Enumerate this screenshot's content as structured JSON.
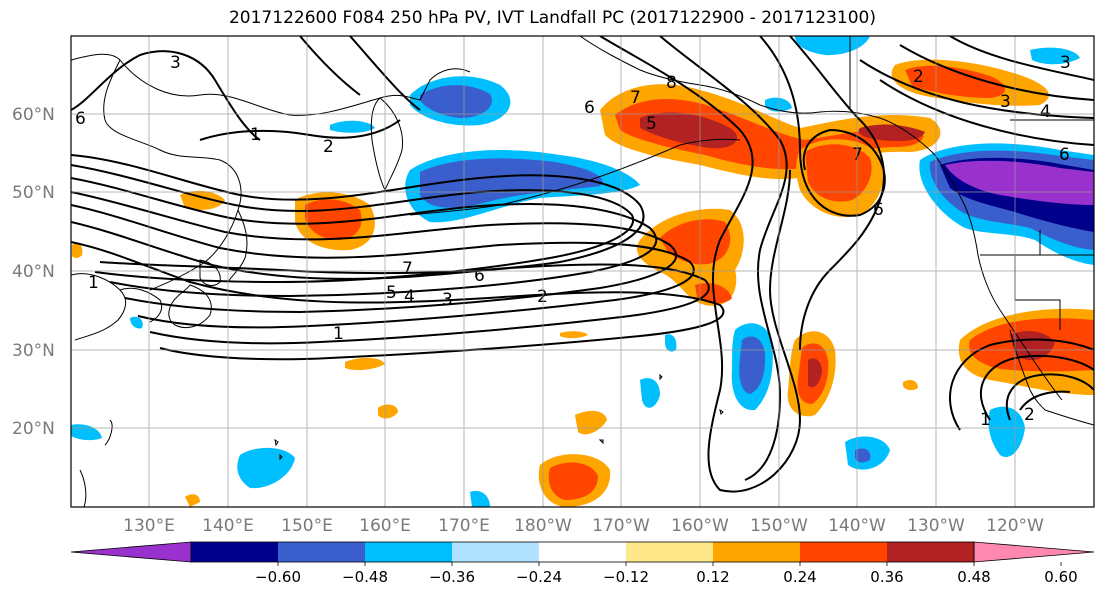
{
  "title": "2017122600 F084 250 hPa PV, IVT Landfall PC (2017122900 - 2017123100)",
  "lat_labels": [
    "60°N",
    "50°N",
    "40°N",
    "30°N",
    "20°N"
  ],
  "lon_labels": [
    "130°E",
    "140°E",
    "150°E",
    "160°E",
    "170°E",
    "180°W",
    "170°W",
    "160°W",
    "150°W",
    "140°W",
    "130°W",
    "120°W"
  ],
  "colorbar": {
    "colors": [
      "#9932cc",
      "#00008b",
      "#3a5fcd",
      "#00bfff",
      "#b0e2ff",
      "#ffffff",
      "#ffe88a",
      "#ffa500",
      "#ff4500",
      "#b22222",
      "#ff88b0"
    ],
    "tick_labels": [
      "−0.60",
      "−0.48",
      "−0.36",
      "−0.24",
      "−0.12",
      "0.12",
      "0.24",
      "0.36",
      "0.48",
      "0.60"
    ]
  },
  "contour_labels": [
    "3",
    "1",
    "2",
    "7",
    "6",
    "5",
    "4",
    "3",
    "2",
    "1",
    "6",
    "7",
    "8",
    "5",
    "7",
    "6",
    "6",
    "3",
    "4",
    "2",
    "1",
    "2",
    "6",
    "3",
    "1"
  ]
}
